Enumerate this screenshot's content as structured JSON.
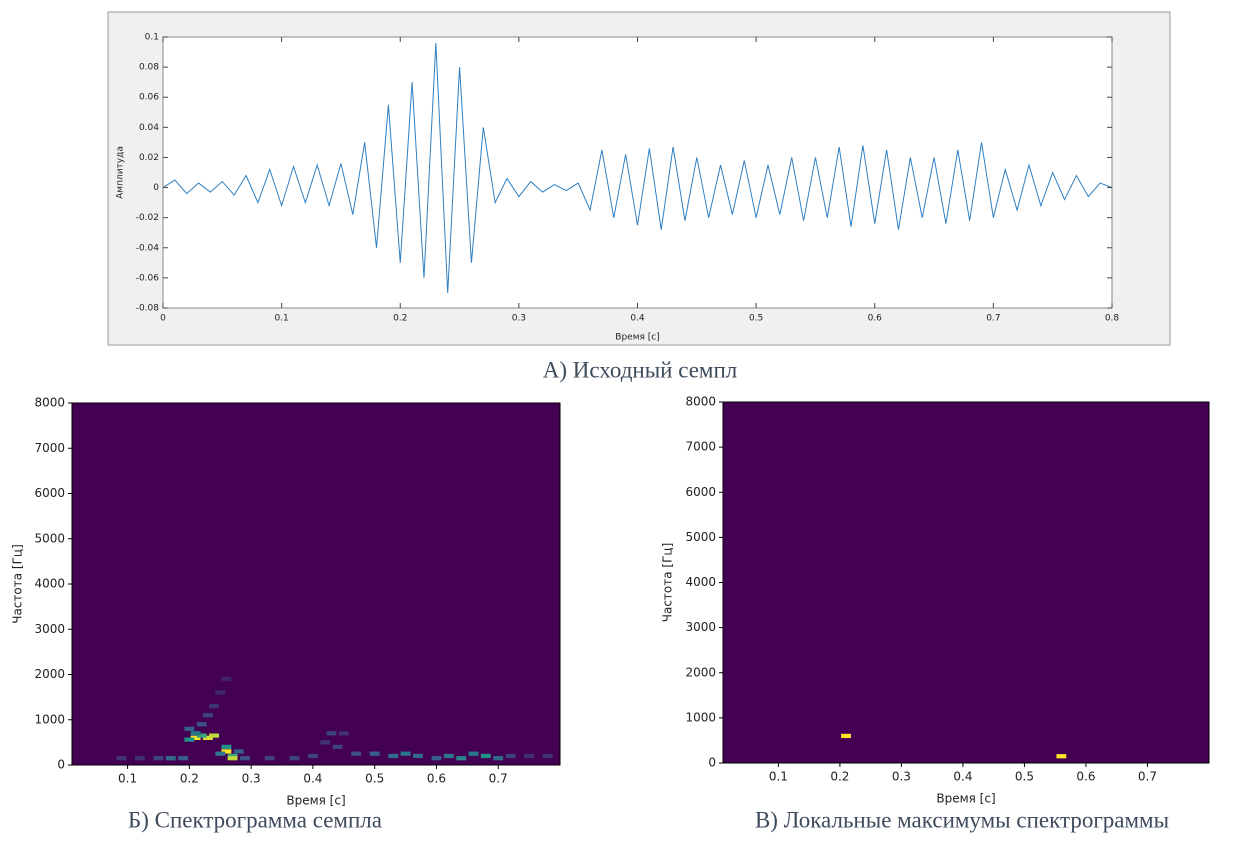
{
  "chart_data": [
    {
      "type": "line",
      "caption": "А) Исходный семпл",
      "xlabel": "Время [c]",
      "ylabel": "Амплитуда",
      "color": "#2f7fc1",
      "x": [
        0,
        0.01,
        0.02,
        0.03,
        0.04,
        0.05,
        0.06,
        0.07,
        0.08,
        0.09,
        0.1,
        0.11,
        0.12,
        0.13,
        0.14,
        0.15,
        0.16,
        0.17,
        0.18,
        0.19,
        0.2,
        0.21,
        0.22,
        0.23,
        0.24,
        0.25,
        0.26,
        0.27,
        0.28,
        0.29,
        0.3,
        0.31,
        0.32,
        0.33,
        0.34,
        0.35,
        0.36,
        0.37,
        0.38,
        0.39,
        0.4,
        0.41,
        0.42,
        0.43,
        0.44,
        0.45,
        0.46,
        0.47,
        0.48,
        0.49,
        0.5,
        0.51,
        0.52,
        0.53,
        0.54,
        0.55,
        0.56,
        0.57,
        0.58,
        0.59,
        0.6,
        0.61,
        0.62,
        0.63,
        0.64,
        0.65,
        0.66,
        0.67,
        0.68,
        0.69,
        0.7,
        0.71,
        0.72,
        0.73,
        0.74,
        0.75,
        0.76,
        0.77,
        0.78,
        0.79,
        0.8
      ],
      "values": [
        0,
        0.005,
        -0.004,
        0.003,
        -0.003,
        0.004,
        -0.005,
        0.008,
        -0.01,
        0.012,
        -0.012,
        0.014,
        -0.01,
        0.015,
        -0.012,
        0.016,
        -0.018,
        0.03,
        -0.04,
        0.055,
        -0.05,
        0.07,
        -0.06,
        0.096,
        -0.07,
        0.08,
        -0.05,
        0.04,
        -0.01,
        0.006,
        -0.006,
        0.004,
        -0.003,
        0.002,
        -0.002,
        0.003,
        -0.015,
        0.025,
        -0.02,
        0.022,
        -0.025,
        0.026,
        -0.028,
        0.027,
        -0.022,
        0.02,
        -0.02,
        0.015,
        -0.018,
        0.018,
        -0.02,
        0.015,
        -0.018,
        0.02,
        -0.022,
        0.02,
        -0.02,
        0.027,
        -0.026,
        0.028,
        -0.024,
        0.025,
        -0.028,
        0.02,
        -0.02,
        0.02,
        -0.024,
        0.025,
        -0.022,
        0.03,
        -0.02,
        0.012,
        -0.015,
        0.015,
        -0.012,
        0.01,
        -0.008,
        0.008,
        -0.006,
        0.003,
        0
      ],
      "xlim": [
        0,
        0.8
      ],
      "ylim": [
        -0.08,
        0.1
      ],
      "xticks": [
        0,
        0.1,
        0.2,
        0.3,
        0.4,
        0.5,
        0.6,
        0.7,
        0.8
      ],
      "yticks": [
        -0.08,
        -0.06,
        -0.04,
        -0.02,
        0,
        0.02,
        0.04,
        0.06,
        0.08,
        0.1
      ]
    },
    {
      "type": "heatmap",
      "caption": "Б) Спектрограмма семпла",
      "xlabel": "Время [с]",
      "ylabel": "Частота [Гц]",
      "colormap": [
        "#440154",
        "#3b528b",
        "#21918c",
        "#5ec962",
        "#fde725"
      ],
      "vlim": [
        0,
        1
      ],
      "cell_size": [
        0.016,
        94
      ],
      "cells": {
        "x": [
          0.21,
          0.23,
          0.24,
          0.22,
          0.2,
          0.21,
          0.2,
          0.22,
          0.23,
          0.26,
          0.26,
          0.27,
          0.27,
          0.25,
          0.19,
          0.17,
          0.15,
          0.12,
          0.09,
          0.24,
          0.25,
          0.26,
          0.28,
          0.29,
          0.37,
          0.4,
          0.43,
          0.45,
          0.47,
          0.5,
          0.53,
          0.55,
          0.57,
          0.6,
          0.62,
          0.64,
          0.66,
          0.68,
          0.7,
          0.72,
          0.75,
          0.78,
          0.33,
          0.44,
          0.42
        ],
        "y": [
          600,
          600,
          650,
          650,
          560,
          700,
          800,
          900,
          1100,
          300,
          400,
          200,
          150,
          250,
          150,
          150,
          150,
          150,
          150,
          1300,
          1600,
          1900,
          300,
          150,
          150,
          200,
          700,
          700,
          250,
          250,
          200,
          250,
          200,
          150,
          200,
          150,
          250,
          200,
          150,
          200,
          200,
          200,
          150,
          400,
          500
        ],
        "values": [
          1,
          0.95,
          0.9,
          0.6,
          0.5,
          0.4,
          0.3,
          0.25,
          0.2,
          1,
          0.5,
          0.6,
          0.9,
          0.4,
          0.3,
          0.35,
          0.2,
          0.15,
          0.15,
          0.15,
          0.12,
          0.1,
          0.3,
          0.25,
          0.2,
          0.2,
          0.2,
          0.15,
          0.25,
          0.3,
          0.35,
          0.4,
          0.35,
          0.3,
          0.4,
          0.45,
          0.4,
          0.5,
          0.35,
          0.2,
          0.15,
          0.15,
          0.2,
          0.2,
          0.15
        ]
      },
      "xlim": [
        0.01,
        0.8
      ],
      "ylim": [
        0,
        8000
      ],
      "xticks": [
        0.1,
        0.2,
        0.3,
        0.4,
        0.5,
        0.6,
        0.7
      ],
      "yticks": [
        0,
        1000,
        2000,
        3000,
        4000,
        5000,
        6000,
        7000,
        8000
      ]
    },
    {
      "type": "heatmap",
      "caption": "В) Локальные максимумы спектрограммы",
      "xlabel": "Время [с]",
      "ylabel": "Частота [Гц]",
      "colormap": [
        "#440154",
        "#3b528b",
        "#21918c",
        "#5ec962",
        "#fde725"
      ],
      "vlim": [
        0,
        1
      ],
      "cell_size": [
        0.016,
        94
      ],
      "cells": {
        "x": [
          0.21,
          0.56
        ],
        "y": [
          600,
          150
        ],
        "values": [
          1,
          1
        ]
      },
      "xlim": [
        0.01,
        0.8
      ],
      "ylim": [
        0,
        8000
      ],
      "xticks": [
        0.1,
        0.2,
        0.3,
        0.4,
        0.5,
        0.6,
        0.7
      ],
      "yticks": [
        0,
        1000,
        2000,
        3000,
        4000,
        5000,
        6000,
        7000,
        8000
      ]
    }
  ]
}
